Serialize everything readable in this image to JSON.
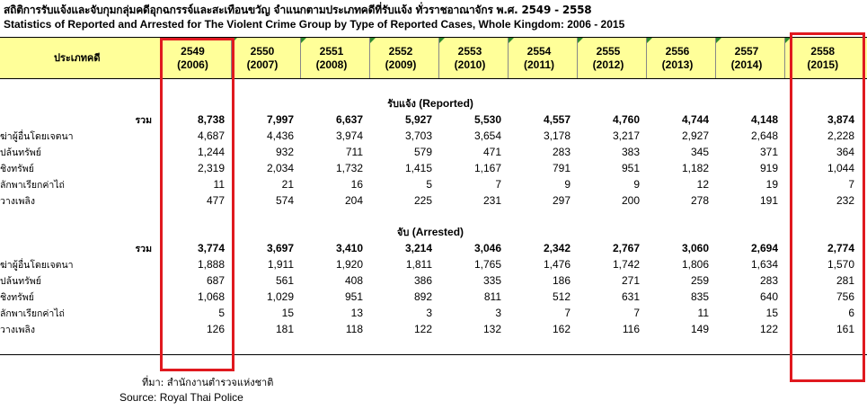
{
  "title_th": "สถิติการรับแจ้งและจับกุมกลุ่มคดีอุกฉกรรจ์และสะเทือนขวัญ จำแนกตามประเภทคดีที่รับแจ้ง ทั่วราชอาณาจักร พ.ศ. 2549 - 2558",
  "title_en": "Statistics of Reported and Arrested for The Violent Crime Group by Type of Reported Cases, Whole Kingdom: 2006 - 2015",
  "header": {
    "category": "ประเภทคดี",
    "years": [
      {
        "be": "2549",
        "ce": "(2006)"
      },
      {
        "be": "2550",
        "ce": "(2007)"
      },
      {
        "be": "2551",
        "ce": "(2008)"
      },
      {
        "be": "2552",
        "ce": "(2009)"
      },
      {
        "be": "2553",
        "ce": "(2010)"
      },
      {
        "be": "2554",
        "ce": "(2011)"
      },
      {
        "be": "2555",
        "ce": "(2012)"
      },
      {
        "be": "2556",
        "ce": "(2013)"
      },
      {
        "be": "2557",
        "ce": "(2014)"
      },
      {
        "be": "2558",
        "ce": "(2015)"
      }
    ]
  },
  "sections": [
    {
      "label_th": "รับแจ้ง",
      "label_en": "(Reported)",
      "rows": [
        {
          "category": "รวม",
          "total": true,
          "values": [
            "8,738",
            "7,997",
            "6,637",
            "5,927",
            "5,530",
            "4,557",
            "4,760",
            "4,744",
            "4,148",
            "3,874"
          ]
        },
        {
          "category": "ฆ่าผู้อื่นโดยเจตนา",
          "values": [
            "4,687",
            "4,436",
            "3,974",
            "3,703",
            "3,654",
            "3,178",
            "3,217",
            "2,927",
            "2,648",
            "2,228"
          ]
        },
        {
          "category": "ปล้นทรัพย์",
          "values": [
            "1,244",
            "932",
            "711",
            "579",
            "471",
            "283",
            "383",
            "345",
            "371",
            "364"
          ]
        },
        {
          "category": "ชิงทรัพย์",
          "values": [
            "2,319",
            "2,034",
            "1,732",
            "1,415",
            "1,167",
            "791",
            "951",
            "1,182",
            "919",
            "1,044"
          ]
        },
        {
          "category": "ลักพาเรียกค่าไถ่",
          "values": [
            "11",
            "21",
            "16",
            "5",
            "7",
            "9",
            "9",
            "12",
            "19",
            "7"
          ]
        },
        {
          "category": "วางเพลิง",
          "values": [
            "477",
            "574",
            "204",
            "225",
            "231",
            "297",
            "200",
            "278",
            "191",
            "232"
          ]
        }
      ]
    },
    {
      "label_th": "จับ",
      "label_en": "(Arrested)",
      "rows": [
        {
          "category": "รวม",
          "total": true,
          "values": [
            "3,774",
            "3,697",
            "3,410",
            "3,214",
            "3,046",
            "2,342",
            "2,767",
            "3,060",
            "2,694",
            "2,774"
          ]
        },
        {
          "category": "ฆ่าผู้อื่นโดยเจตนา",
          "values": [
            "1,888",
            "1,911",
            "1,920",
            "1,811",
            "1,765",
            "1,476",
            "1,742",
            "1,806",
            "1,634",
            "1,570"
          ]
        },
        {
          "category": "ปล้นทรัพย์",
          "values": [
            "687",
            "561",
            "408",
            "386",
            "335",
            "186",
            "271",
            "259",
            "283",
            "281"
          ]
        },
        {
          "category": "ชิงทรัพย์",
          "values": [
            "1,068",
            "1,029",
            "951",
            "892",
            "811",
            "512",
            "631",
            "835",
            "640",
            "756"
          ]
        },
        {
          "category": "ลักพาเรียกค่าไถ่",
          "values": [
            "5",
            "15",
            "13",
            "3",
            "3",
            "7",
            "7",
            "11",
            "15",
            "6"
          ]
        },
        {
          "category": "วางเพลิง",
          "values": [
            "126",
            "181",
            "118",
            "122",
            "132",
            "162",
            "116",
            "149",
            "122",
            "161"
          ]
        }
      ]
    }
  ],
  "source_th": "ที่มา:  สำนักงานตำรวจแห่งชาติ",
  "source_en": "Source:  Royal Thai Police",
  "highlight_color": "#e0191f",
  "header_bg": "#ffff99"
}
